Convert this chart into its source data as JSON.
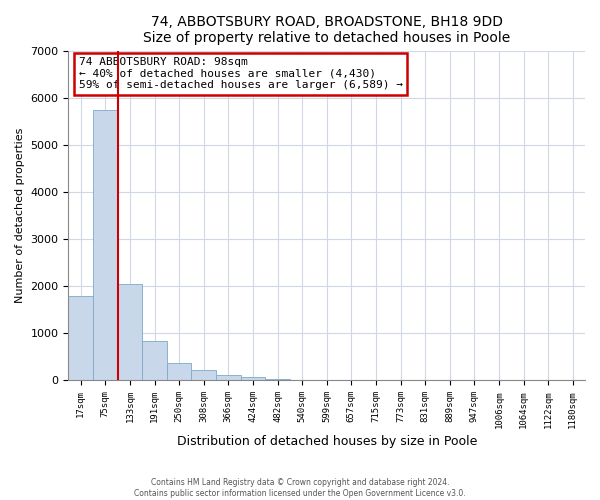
{
  "title1": "74, ABBOTSBURY ROAD, BROADSTONE, BH18 9DD",
  "title2": "Size of property relative to detached houses in Poole",
  "xlabel": "Distribution of detached houses by size in Poole",
  "ylabel": "Number of detached properties",
  "bar_labels": [
    "17sqm",
    "75sqm",
    "133sqm",
    "191sqm",
    "250sqm",
    "308sqm",
    "366sqm",
    "424sqm",
    "482sqm",
    "540sqm",
    "599sqm",
    "657sqm",
    "715sqm",
    "773sqm",
    "831sqm",
    "889sqm",
    "947sqm",
    "1006sqm",
    "1064sqm",
    "1122sqm",
    "1180sqm"
  ],
  "bar_values": [
    1780,
    5730,
    2050,
    830,
    370,
    220,
    105,
    60,
    30,
    15,
    5,
    2,
    1,
    0,
    0,
    0,
    0,
    0,
    0,
    0,
    0
  ],
  "bar_color": "#c8d8ea",
  "bar_edge_color": "#7baac8",
  "vline_x": 1.5,
  "vline_color": "#cc0000",
  "ylim": [
    0,
    7000
  ],
  "yticks": [
    0,
    1000,
    2000,
    3000,
    4000,
    5000,
    6000,
    7000
  ],
  "annotation_line1": "74 ABBOTSBURY ROAD: 98sqm",
  "annotation_line2": "← 40% of detached houses are smaller (4,430)",
  "annotation_line3": "59% of semi-detached houses are larger (6,589) →",
  "footer1": "Contains HM Land Registry data © Crown copyright and database right 2024.",
  "footer2": "Contains public sector information licensed under the Open Government Licence v3.0."
}
